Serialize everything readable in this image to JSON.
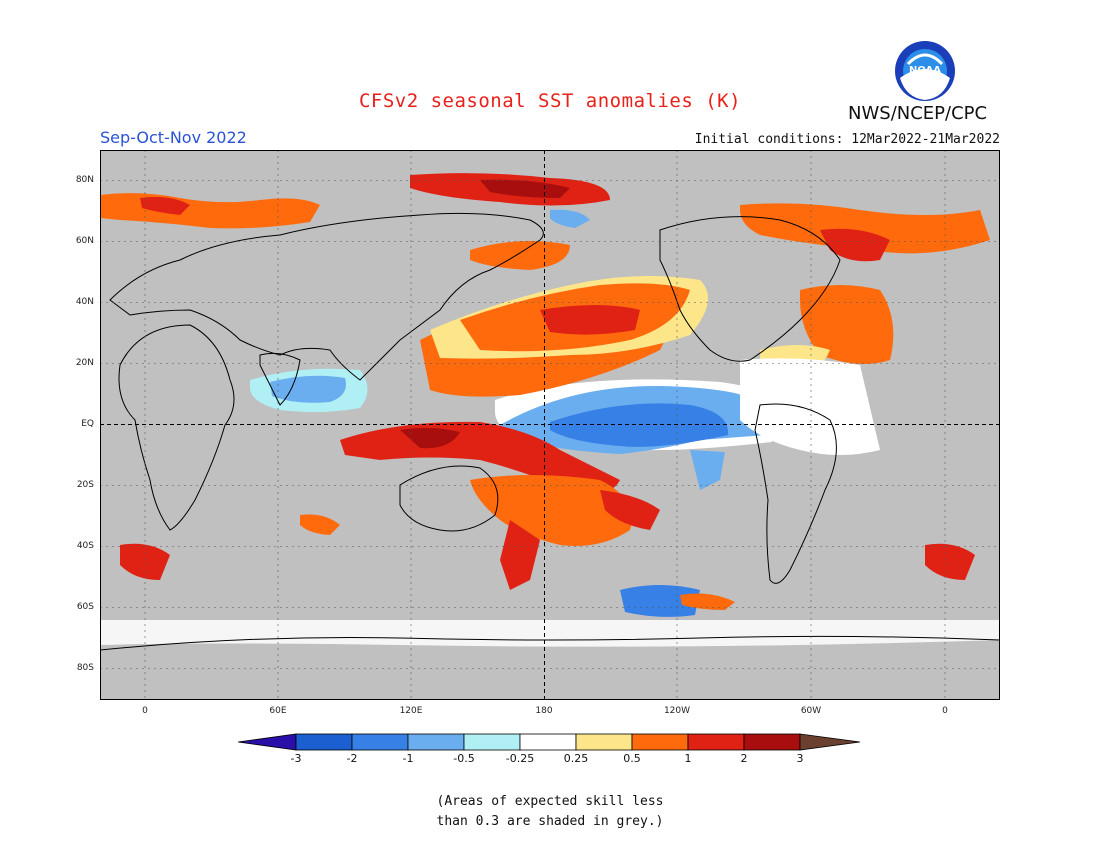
{
  "header": {
    "title": "CFSv2 seasonal SST anomalies (K)",
    "agency": "NWS/NCEP/CPC",
    "logo_text": "NOAA",
    "season": "Sep-Oct-Nov 2022",
    "initial_conditions": "Initial conditions: 12Mar2022-21Mar2022"
  },
  "map": {
    "lat_labels": [
      "80N",
      "60N",
      "40N",
      "20N",
      "EQ",
      "20S",
      "40S",
      "60S",
      "80S"
    ],
    "lon_labels": [
      "0",
      "60E",
      "120E",
      "180",
      "120W",
      "60W",
      "0"
    ],
    "land_color": "#c0c0c0",
    "ocean_color": "#ffffff"
  },
  "colorbar": {
    "labels": [
      "-3",
      "-2",
      "-1",
      "-0.5",
      "-0.25",
      "0.25",
      "0.5",
      "1",
      "2",
      "3"
    ],
    "colors": [
      "#2a0fa8",
      "#1c5fd0",
      "#3680e6",
      "#6aaef0",
      "#b0f0f4",
      "#ffffff",
      "#fde68a",
      "#ff6a0d",
      "#e02215",
      "#a80e0e",
      "#6b4030"
    ]
  },
  "footnote": {
    "line1": "(Areas of expected skill less",
    "line2": "than 0.3 are shaded in grey.)"
  }
}
